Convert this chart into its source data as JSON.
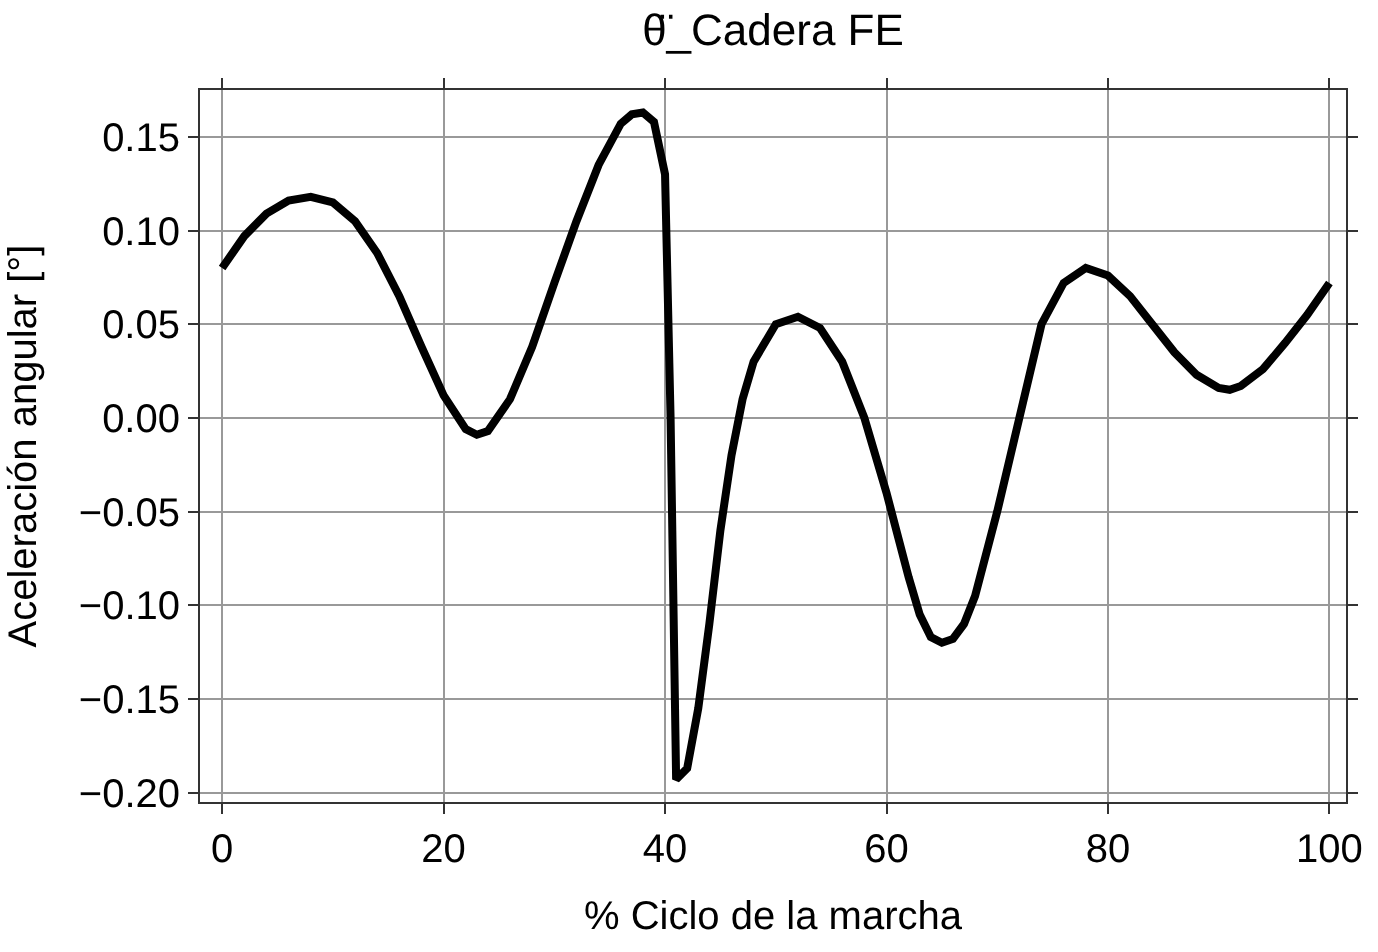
{
  "chart_data": {
    "type": "line",
    "title": "θ̈_Cadera FE",
    "xlabel": "% Ciclo de la marcha",
    "ylabel": "Aceleración angular [°]",
    "x": [
      0,
      2,
      4,
      6,
      8,
      10,
      12,
      14,
      16,
      18,
      20,
      22,
      23,
      24,
      26,
      28,
      30,
      32,
      34,
      36,
      37,
      38,
      39,
      40,
      40.5,
      41,
      42,
      43,
      44,
      45,
      46,
      47,
      48,
      50,
      52,
      54,
      56,
      58,
      60,
      62,
      63,
      64,
      65,
      66,
      67,
      68,
      70,
      72,
      74,
      76,
      78,
      80,
      82,
      84,
      86,
      88,
      90,
      91,
      92,
      94,
      96,
      98,
      100
    ],
    "series": [
      {
        "color": "#000000",
        "values": [
          0.08,
          0.097,
          0.109,
          0.116,
          0.118,
          0.115,
          0.105,
          0.088,
          0.065,
          0.038,
          0.012,
          -0.006,
          -0.009,
          -0.007,
          0.01,
          0.038,
          0.072,
          0.105,
          0.135,
          0.157,
          0.162,
          0.163,
          0.158,
          0.13,
          0.0,
          -0.193,
          -0.187,
          -0.155,
          -0.11,
          -0.06,
          -0.02,
          0.01,
          0.03,
          0.05,
          0.054,
          0.048,
          0.03,
          0.0,
          -0.04,
          -0.085,
          -0.105,
          -0.117,
          -0.12,
          -0.118,
          -0.11,
          -0.095,
          -0.05,
          0.0,
          0.05,
          0.072,
          0.08,
          0.076,
          0.065,
          0.05,
          0.035,
          0.023,
          0.016,
          0.015,
          0.017,
          0.026,
          0.04,
          0.055,
          0.072
        ]
      }
    ],
    "xlim": [
      -2,
      101.5
    ],
    "ylim": [
      -0.205,
      0.175
    ],
    "xticks": [
      0,
      20,
      40,
      60,
      80,
      100
    ],
    "yticks": [
      {
        "value": -0.2,
        "label": "−0.20"
      },
      {
        "value": -0.15,
        "label": "−0.15"
      },
      {
        "value": -0.1,
        "label": "−0.10"
      },
      {
        "value": -0.05,
        "label": "−0.05"
      },
      {
        "value": 0,
        "label": "0.00"
      },
      {
        "value": 0.05,
        "label": "0.05"
      },
      {
        "value": 0.1,
        "label": "0.10"
      },
      {
        "value": 0.15,
        "label": "0.15"
      }
    ],
    "grid": true,
    "marker": "none",
    "line_style": "solid"
  }
}
